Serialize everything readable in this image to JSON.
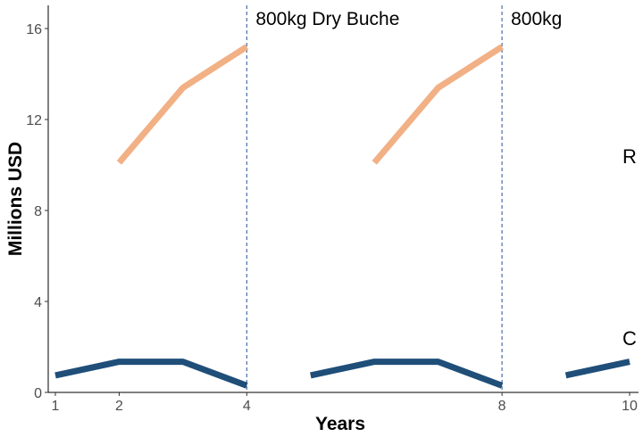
{
  "chart_data": {
    "type": "line",
    "xlabel": "Years",
    "ylabel": "Millions USD",
    "xlim": [
      1,
      10
    ],
    "ylim": [
      0,
      17
    ],
    "x_ticks": [
      1,
      2,
      4,
      8,
      10
    ],
    "y_ticks": [
      0,
      4,
      8,
      12,
      16
    ],
    "grid": false,
    "vlines": [
      4,
      8
    ],
    "annotations": [
      {
        "x": 4,
        "y": 16.5,
        "text": "800kg Dry Buche"
      },
      {
        "x": 8,
        "y": 16.5,
        "text": "800kg"
      }
    ],
    "series": [
      {
        "label": "R",
        "color": "#f2b085",
        "segments": [
          [
            [
              2,
              10.1
            ],
            [
              3,
              13.4
            ],
            [
              4,
              15.2
            ]
          ],
          [
            [
              6,
              10.1
            ],
            [
              7,
              13.4
            ],
            [
              8,
              15.2
            ]
          ]
        ],
        "label_at": [
          10,
          10.4
        ]
      },
      {
        "label": "C",
        "color": "#1f4e79",
        "segments": [
          [
            [
              1,
              0.75
            ],
            [
              2,
              1.35
            ],
            [
              3,
              1.35
            ],
            [
              4,
              0.3
            ]
          ],
          [
            [
              5,
              0.75
            ],
            [
              6,
              1.35
            ],
            [
              7,
              1.35
            ],
            [
              8,
              0.3
            ]
          ],
          [
            [
              9,
              0.75
            ],
            [
              10,
              1.35
            ]
          ]
        ],
        "label_at": [
          10,
          2.4
        ]
      }
    ],
    "colors": {
      "axis": "#000000",
      "tick_text": "#4d4d4d",
      "vline": "#4a6fa5"
    }
  }
}
